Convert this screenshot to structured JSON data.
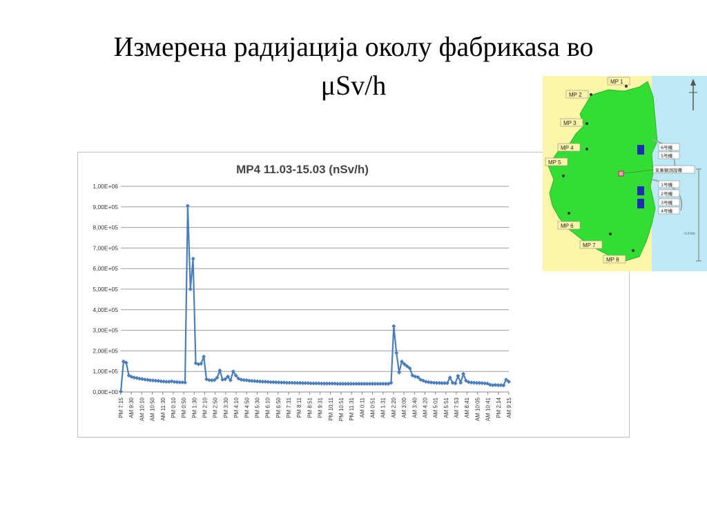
{
  "slide": {
    "title_line1": "Измерена радијација околу фабрикаѕа во",
    "title_line2": "μSv/h"
  },
  "colors": {
    "series": "#4a7ebb",
    "land": "#33dd33",
    "sea": "#bde9f5",
    "map_bg": "#fdf6a8",
    "reactor": "#1a2fb0"
  },
  "chart_data": {
    "type": "line",
    "title": "MP4 11.03-15.03 (nSv/h)",
    "xlabel": "",
    "ylabel": "",
    "ylim": [
      0,
      1000000
    ],
    "yticks": [
      "0,00E+00",
      "1,00E+05",
      "2,00E+05",
      "3,00E+05",
      "4,00E+05",
      "5,00E+05",
      "6,00E+05",
      "7,00E+05",
      "8,00E+05",
      "9,00E+05",
      "1,00E+06"
    ],
    "xtick_labels": [
      "PM 7:15",
      "AM 9:30",
      "AM 10:10",
      "AM 10:50",
      "AM 11:30",
      "PM 0:10",
      "PM 0:50",
      "PM 1:30",
      "PM 2:10",
      "PM 2:50",
      "PM 3:30",
      "PM 4:10",
      "PM 4:50",
      "PM 5:30",
      "PM 6:10",
      "PM 6:50",
      "PM 7:31",
      "PM 8:11",
      "PM 8:51",
      "PM 9:31",
      "PM 10:11",
      "PM 10:51",
      "PM 11:31",
      "AM 0:11",
      "AM 0:51",
      "AM 1:31",
      "AM 2:20",
      "AM 3:00",
      "AM 3:40",
      "AM 4:20",
      "AM 5:01",
      "AM 5:51",
      "AM 7:53",
      "AM 8:41",
      "AM 10:05",
      "AM 10:41",
      "PM 2:14",
      "AM 9:15"
    ],
    "grid": true,
    "legend": "none",
    "series": [
      {
        "values": [
          2000,
          148000,
          142000,
          80000,
          74000,
          70000,
          68000,
          65000,
          63000,
          61000,
          59000,
          57000,
          56000,
          55000,
          54000,
          52000,
          51000,
          50000,
          50000,
          52000,
          49000,
          48000,
          47000,
          47000,
          46000,
          905000,
          500000,
          648000,
          140000,
          135000,
          138000,
          172000,
          62000,
          58000,
          57000,
          58000,
          70000,
          105000,
          60000,
          62000,
          75000,
          57000,
          100000,
          80000,
          65000,
          60000,
          58000,
          57000,
          55000,
          54000,
          53000,
          52000,
          51000,
          50000,
          50000,
          49000,
          48000,
          48000,
          47000,
          47000,
          46000,
          46000,
          45000,
          45000,
          45000,
          44000,
          44000,
          44000,
          43000,
          43000,
          43000,
          42000,
          42000,
          42000,
          42000,
          41000,
          41000,
          41000,
          41000,
          41000,
          41000,
          40000,
          40000,
          40000,
          40000,
          40000,
          40000,
          40000,
          40000,
          40000,
          40000,
          40000,
          40000,
          40000,
          40000,
          40000,
          40000,
          40000,
          40000,
          40000,
          40000,
          45000,
          320000,
          190000,
          95000,
          148000,
          135000,
          125000,
          115000,
          80000,
          75000,
          72000,
          60000,
          55000,
          50000,
          48000,
          46000,
          45000,
          44000,
          44000,
          43000,
          43000,
          43000,
          70000,
          45000,
          42000,
          78000,
          45000,
          88000,
          55000,
          48000,
          46000,
          45000,
          44000,
          44000,
          43000,
          42000,
          41000,
          35000,
          33000,
          34000,
          33000,
          33000,
          32000,
          60000,
          50000
        ]
      }
    ]
  },
  "map": {
    "labels": {
      "mp1": "MP 1",
      "mp2": "MP 2",
      "mp3": "MP 3",
      "mp4": "MP 4",
      "mp5": "MP 5",
      "mp6": "MP 6",
      "mp7": "MP 7",
      "mp8": "MP 8",
      "u6": "6号機",
      "u5": "5号機",
      "u1": "1号機",
      "u2": "2号機",
      "u3": "3号機",
      "u4": "4号機",
      "station": "気象観測設備",
      "scale": "~1.6 km"
    }
  }
}
